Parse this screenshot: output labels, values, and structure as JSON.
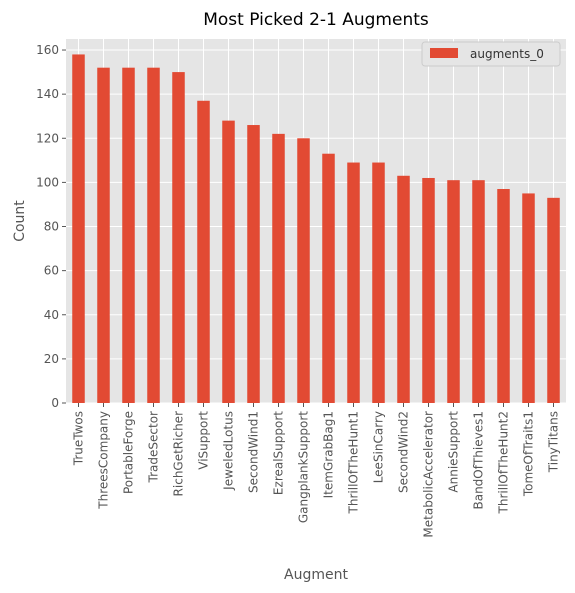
{
  "chart_data": {
    "type": "bar",
    "title": "Most Picked 2-1 Augments",
    "xlabel": "Augment",
    "ylabel": "Count",
    "ylim": [
      0,
      165
    ],
    "yticks": [
      0,
      20,
      40,
      60,
      80,
      100,
      120,
      140,
      160
    ],
    "grid": true,
    "legend_position": "top-right",
    "categories": [
      "TrueTwos",
      "ThreesCompany",
      "PortableForge",
      "TradeSector",
      "RichGetRicher",
      "ViSupport",
      "JeweledLotus",
      "SecondWind1",
      "EzrealSupport",
      "GangplankSupport",
      "ItemGrabBag1",
      "ThrillOfTheHunt1",
      "LeeSinCarry",
      "SecondWind2",
      "MetabolicAccelerator",
      "AnnieSupport",
      "BandOfThieves1",
      "ThrillOfTheHunt2",
      "TomeOfTraits1",
      "TinyTitans"
    ],
    "series": [
      {
        "name": "augments_0",
        "color": "#e24a33",
        "values": [
          158,
          152,
          152,
          152,
          150,
          137,
          128,
          126,
          122,
          120,
          113,
          109,
          109,
          103,
          102,
          101,
          101,
          97,
          95,
          93
        ]
      }
    ]
  }
}
